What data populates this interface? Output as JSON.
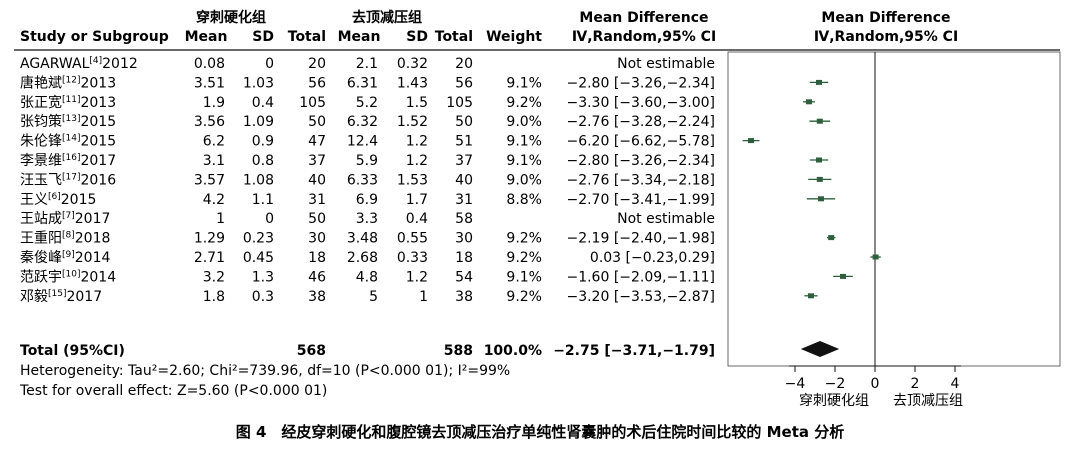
{
  "header": {
    "group1": "穿刺硬化组",
    "group2": "去顶减压组",
    "md_title": "Mean Difference",
    "md_method": "Ⅳ,Random,95% CI",
    "plot_md_title": "Mean Difference",
    "plot_md_method": "Ⅳ,Random,95% CI",
    "study_col": "Study or Subgroup",
    "mean": "Mean",
    "sd": "SD",
    "total": "Total",
    "weight": "Weight"
  },
  "rows": [
    {
      "study": "AGARWAL[4]2012",
      "m1": "0.08",
      "sd1": "0",
      "n1": "20",
      "m2": "2.1",
      "sd2": "0.32",
      "n2": "20",
      "weight": "",
      "ci": "Not estimable"
    },
    {
      "study": "唐艳斌[12]2013",
      "m1": "3.51",
      "sd1": "1.03",
      "n1": "56",
      "m2": "6.31",
      "sd2": "1.43",
      "n2": "56",
      "weight": "9.1%",
      "ci": "−2.80 [−3.26,−2.34]"
    },
    {
      "study": "张正宽[11]2013",
      "m1": "1.9",
      "sd1": "0.4",
      "n1": "105",
      "m2": "5.2",
      "sd2": "1.5",
      "n2": "105",
      "weight": "9.2%",
      "ci": "−3.30 [−3.60,−3.00]"
    },
    {
      "study": "张钧策[13]2015",
      "m1": "3.56",
      "sd1": "1.09",
      "n1": "50",
      "m2": "6.32",
      "sd2": "1.52",
      "n2": "50",
      "weight": "9.0%",
      "ci": "−2.76 [−3.28,−2.24]"
    },
    {
      "study": "朱伦锋[14]2015",
      "m1": "6.2",
      "sd1": "0.9",
      "n1": "47",
      "m2": "12.4",
      "sd2": "1.2",
      "n2": "51",
      "weight": "9.1%",
      "ci": "−6.20 [−6.62,−5.78]"
    },
    {
      "study": "李景维[16]2017",
      "m1": "3.1",
      "sd1": "0.8",
      "n1": "37",
      "m2": "5.9",
      "sd2": "1.2",
      "n2": "37",
      "weight": "9.1%",
      "ci": "−2.80 [−3.26,−2.34]"
    },
    {
      "study": "汪玉飞[17]2016",
      "m1": "3.57",
      "sd1": "1.08",
      "n1": "40",
      "m2": "6.33",
      "sd2": "1.53",
      "n2": "40",
      "weight": "9.0%",
      "ci": "−2.76 [−3.34,−2.18]"
    },
    {
      "study": "王义[6]2015",
      "m1": "4.2",
      "sd1": "1.1",
      "n1": "31",
      "m2": "6.9",
      "sd2": "1.7",
      "n2": "31",
      "weight": "8.8%",
      "ci": "−2.70 [−3.41,−1.99]"
    },
    {
      "study": "王站成[7]2017",
      "m1": "1",
      "sd1": "0",
      "n1": "50",
      "m2": "3.3",
      "sd2": "0.4",
      "n2": "58",
      "weight": "",
      "ci": "Not estimable"
    },
    {
      "study": "王重阳[8]2018",
      "m1": "1.29",
      "sd1": "0.23",
      "n1": "30",
      "m2": "3.48",
      "sd2": "0.55",
      "n2": "30",
      "weight": "9.2%",
      "ci": "−2.19 [−2.40,−1.98]"
    },
    {
      "study": "秦俊峰[9]2014",
      "m1": "2.71",
      "sd1": "0.45",
      "n1": "18",
      "m2": "2.68",
      "sd2": "0.33",
      "n2": "18",
      "weight": "9.2%",
      "ci": "0.03 [−0.23,0.29]"
    },
    {
      "study": "范跃宇[10]2014",
      "m1": "3.2",
      "sd1": "1.3",
      "n1": "46",
      "m2": "4.8",
      "sd2": "1.2",
      "n2": "54",
      "weight": "9.1%",
      "ci": "−1.60 [−2.09,−1.11]"
    },
    {
      "study": "邓毅[15]2017",
      "m1": "1.8",
      "sd1": "0.3",
      "n1": "38",
      "m2": "5",
      "sd2": "1",
      "n2": "38",
      "weight": "9.2%",
      "ci": "−3.20 [−3.53,−2.87]"
    }
  ],
  "total": {
    "label": "Total (95%CI)",
    "n1": "568",
    "n2": "588",
    "weight": "100.0%",
    "ci": "−2.75 [−3.71,−1.79]"
  },
  "heterogeneity": "Heterogeneity: Tau²=2.60; Chi²=739.96, df=10 (P<0.000 01); I²=99%",
  "overall_effect": "Test for overall effect: Z=5.60 (P<0.000 01)",
  "axis": {
    "ticks": [
      "−4",
      "−2",
      "0",
      "2",
      "4"
    ],
    "left_label": "穿刺硬化组",
    "right_label": "去顶减压组"
  },
  "caption": "图 4　经皮穿刺硬化和腹腔镜去顶减压治疗单纯性肾囊肿的术后住院时间比较的 Meta 分析",
  "chart_data": {
    "type": "forest",
    "xlim": [
      -7,
      5
    ],
    "ticks": [
      -4,
      -2,
      0,
      2,
      4
    ],
    "null_line": 0,
    "studies": [
      {
        "study": "AGARWAL[4]2012",
        "md": null,
        "lo": null,
        "hi": null
      },
      {
        "study": "唐艳斌[12]2013",
        "md": -2.8,
        "lo": -3.26,
        "hi": -2.34
      },
      {
        "study": "张正宽[11]2013",
        "md": -3.3,
        "lo": -3.6,
        "hi": -3.0
      },
      {
        "study": "张钧策[13]2015",
        "md": -2.76,
        "lo": -3.28,
        "hi": -2.24
      },
      {
        "study": "朱伦锋[14]2015",
        "md": -6.2,
        "lo": -6.62,
        "hi": -5.78
      },
      {
        "study": "李景维[16]2017",
        "md": -2.8,
        "lo": -3.26,
        "hi": -2.34
      },
      {
        "study": "汪玉飞[17]2016",
        "md": -2.76,
        "lo": -3.34,
        "hi": -2.18
      },
      {
        "study": "王义[6]2015",
        "md": -2.7,
        "lo": -3.41,
        "hi": -1.99
      },
      {
        "study": "王站成[7]2017",
        "md": null,
        "lo": null,
        "hi": null
      },
      {
        "study": "王重阳[8]2018",
        "md": -2.19,
        "lo": -2.4,
        "hi": -1.98
      },
      {
        "study": "秦俊峰[9]2014",
        "md": 0.03,
        "lo": -0.23,
        "hi": 0.29
      },
      {
        "study": "范跃宇[10]2014",
        "md": -1.6,
        "lo": -2.09,
        "hi": -1.11
      },
      {
        "study": "邓毅[15]2017",
        "md": -3.2,
        "lo": -3.53,
        "hi": -2.87
      }
    ],
    "pooled": {
      "md": -2.75,
      "lo": -3.71,
      "hi": -1.79
    },
    "marker_color": "#2e5e3c"
  }
}
